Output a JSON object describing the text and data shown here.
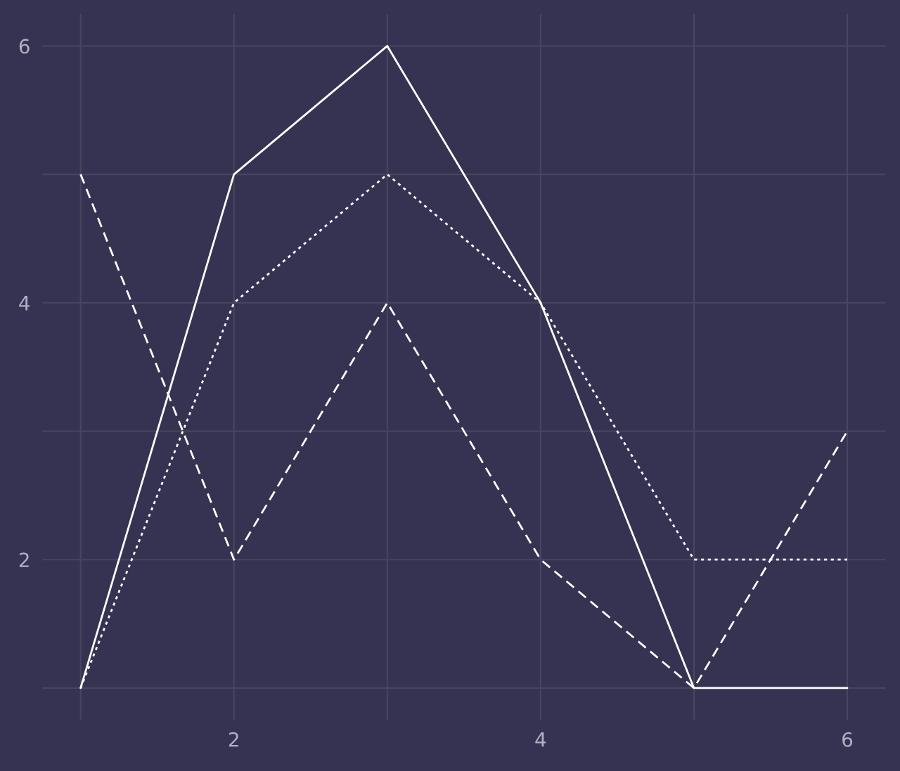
{
  "chart_data": {
    "type": "line",
    "x": [
      1,
      2,
      3,
      4,
      5,
      6
    ],
    "series": [
      {
        "color": "#ffffff",
        "line_style": "solid",
        "values": [
          1,
          5,
          6,
          4,
          1,
          1
        ]
      },
      {
        "color": "#ffffff",
        "line_style": "dotted",
        "values": [
          1,
          4,
          5,
          4,
          2,
          2
        ]
      },
      {
        "color": "#ffffff",
        "line_style": "dashed",
        "values": [
          5,
          2,
          4,
          2,
          1,
          3
        ]
      }
    ],
    "xlim": [
      0.75,
      6.25
    ],
    "ylim": [
      0.75,
      6.25
    ],
    "xticks": [
      {
        "value": 1,
        "label": null
      },
      2,
      {
        "value": 3,
        "label": null
      },
      4,
      {
        "value": 5,
        "label": null
      },
      6
    ],
    "yticks": [
      {
        "value": 1,
        "label": null
      },
      2,
      {
        "value": 3,
        "label": null
      },
      4,
      {
        "value": 5,
        "label": null
      },
      6
    ],
    "grid": true,
    "legend": false,
    "marker": "none"
  }
}
